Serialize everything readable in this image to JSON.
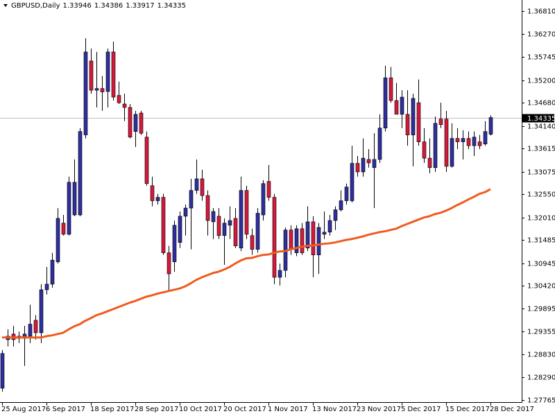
{
  "chart_data": {
    "type": "candlestick",
    "title": "GBPUSD,Daily",
    "header_ohlc": [
      1.33946,
      1.34386,
      1.33917,
      1.34335
    ],
    "categories": [
      "25 Aug 2017",
      null,
      null,
      null,
      null,
      null,
      null,
      null,
      "6 Sep 2017",
      null,
      null,
      null,
      null,
      null,
      null,
      null,
      "18 Sep 2017",
      null,
      null,
      null,
      null,
      null,
      null,
      null,
      "28 Sep 2017",
      null,
      null,
      null,
      null,
      null,
      null,
      null,
      "10 Oct 2017",
      null,
      null,
      null,
      null,
      null,
      null,
      null,
      "20 Oct 2017",
      null,
      null,
      null,
      null,
      null,
      null,
      null,
      "1 Nov 2017",
      null,
      null,
      null,
      null,
      null,
      null,
      null,
      "13 Nov 2017",
      null,
      null,
      null,
      null,
      null,
      null,
      null,
      "23 Nov 2017",
      null,
      null,
      null,
      null,
      null,
      null,
      null,
      "5 Dec 2017",
      null,
      null,
      null,
      null,
      null,
      null,
      null,
      "15 Dec 2017",
      null,
      null,
      null,
      null,
      null,
      null,
      null,
      "28 Dec 2017"
    ],
    "open": [
      1.2804,
      1.2917,
      1.293,
      1.292,
      1.292,
      1.2925,
      1.2962,
      1.2933,
      1.3033,
      1.3046,
      1.3098,
      1.3188,
      1.3162,
      1.3207,
      1.3207,
      1.3393,
      1.3565,
      1.3497,
      1.3501,
      1.3494,
      1.3586,
      1.3485,
      1.3465,
      1.3457,
      1.3401,
      1.3444,
      1.3388,
      1.3275,
      1.324,
      1.3248,
      1.3119,
      1.3098,
      1.3143,
      1.3204,
      1.3223,
      1.3264,
      1.3291,
      1.3252,
      1.3191,
      1.3204,
      1.3159,
      1.3183,
      1.3199,
      1.313,
      1.3264,
      1.3159,
      1.3127,
      1.3207,
      1.3285,
      1.3248,
      1.3062,
      1.3078,
      1.3172,
      1.3119,
      1.3175,
      1.313,
      1.3191,
      1.3114,
      1.3162,
      1.3167,
      1.3194,
      1.3219,
      1.324,
      1.324,
      1.3327,
      1.3307,
      1.3336,
      1.3317,
      1.3336,
      1.3409,
      1.3526,
      1.3473,
      1.3441,
      1.3441,
      1.3393,
      1.3468,
      1.3377,
      1.3339,
      1.3317,
      1.343,
      1.343,
      1.332,
      1.3385,
      1.3377,
      1.3385,
      1.3368,
      1.3377,
      1.3372,
      1.33946
    ],
    "high": [
      1.2893,
      1.2941,
      1.2949,
      1.2936,
      1.2949,
      1.2998,
      1.2974,
      1.3046,
      1.3086,
      1.3119,
      1.3223,
      1.3207,
      1.3296,
      1.3336,
      1.3409,
      1.3618,
      1.3594,
      1.3586,
      1.353,
      1.3594,
      1.361,
      1.3517,
      1.3489,
      1.3465,
      1.3449,
      1.3449,
      1.3401,
      1.3296,
      1.3256,
      1.3256,
      1.3135,
      1.3194,
      1.3215,
      1.3231,
      1.3291,
      1.3336,
      1.3312,
      1.3264,
      1.3223,
      1.3223,
      1.3199,
      1.3227,
      1.3223,
      1.3296,
      1.3275,
      1.3175,
      1.3223,
      1.3288,
      1.3323,
      1.3256,
      1.3094,
      1.3178,
      1.3183,
      1.3183,
      1.3188,
      1.3227,
      1.3204,
      1.3188,
      1.3215,
      1.3207,
      1.3227,
      1.3264,
      1.328,
      1.3368,
      1.3344,
      1.3385,
      1.336,
      1.3397,
      1.3441,
      1.3554,
      1.3551,
      1.3514,
      1.3497,
      1.3497,
      1.3489,
      1.3522,
      1.3409,
      1.3385,
      1.3436,
      1.3468,
      1.3449,
      1.342,
      1.3409,
      1.3404,
      1.3401,
      1.3401,
      1.3393,
      1.3425,
      1.34386
    ],
    "low": [
      1.2796,
      1.2901,
      1.2901,
      1.2909,
      1.2856,
      1.2909,
      1.2917,
      1.2909,
      1.3022,
      1.3038,
      1.3094,
      1.3159,
      1.3159,
      1.3204,
      1.3204,
      1.3385,
      1.3489,
      1.3457,
      1.3449,
      1.3457,
      1.3473,
      1.3465,
      1.3425,
      1.3385,
      1.3365,
      1.3393,
      1.3275,
      1.3227,
      1.3231,
      1.3114,
      1.303,
      1.3075,
      1.313,
      1.3159,
      1.3127,
      1.3256,
      1.324,
      1.3159,
      1.3151,
      1.3151,
      1.3091,
      1.3151,
      1.313,
      1.3123,
      1.3151,
      1.3114,
      1.3119,
      1.3194,
      1.324,
      1.3046,
      1.3043,
      1.3062,
      1.3114,
      1.3111,
      1.3114,
      1.3123,
      1.3062,
      1.307,
      1.3151,
      1.3159,
      1.3172,
      1.3215,
      1.3231,
      1.3236,
      1.3296,
      1.3296,
      1.3317,
      1.3223,
      1.3328,
      1.3401,
      1.3468,
      1.3441,
      1.3409,
      1.3368,
      1.332,
      1.3368,
      1.3328,
      1.3304,
      1.3307,
      1.3409,
      1.3307,
      1.3317,
      1.336,
      1.3336,
      1.336,
      1.3344,
      1.336,
      1.3368,
      1.33917
    ],
    "close": [
      1.2885,
      1.2925,
      1.2917,
      1.2925,
      1.293,
      1.2953,
      1.2933,
      1.3033,
      1.3046,
      1.3102,
      1.3199,
      1.3162,
      1.3283,
      1.3283,
      1.3401,
      1.3586,
      1.3497,
      1.3501,
      1.3493,
      1.3586,
      1.3481,
      1.3468,
      1.3457,
      1.3388,
      1.3441,
      1.3397,
      1.328,
      1.324,
      1.3248,
      1.3119,
      1.307,
      1.3183,
      1.3204,
      1.3223,
      1.3264,
      1.3291,
      1.3252,
      1.3194,
      1.3215,
      1.3159,
      1.3188,
      1.3194,
      1.3135,
      1.3264,
      1.3162,
      1.3127,
      1.3211,
      1.328,
      1.3248,
      1.3062,
      1.3078,
      1.3172,
      1.3127,
      1.3175,
      1.3119,
      1.3191,
      1.3114,
      1.3178,
      1.3167,
      1.3194,
      1.3219,
      1.324,
      1.3272,
      1.3327,
      1.3307,
      1.3339,
      1.3328,
      1.3336,
      1.3409,
      1.3526,
      1.3473,
      1.3441,
      1.3481,
      1.3393,
      1.3478,
      1.3377,
      1.3339,
      1.3317,
      1.342,
      1.3417,
      1.332,
      1.3385,
      1.3377,
      1.3385,
      1.3368,
      1.3388,
      1.3368,
      1.3401,
      1.34335
    ],
    "up_color": "#2f2f9e",
    "down_color": "#d41a3c",
    "ma": {
      "color": "#f05a1e",
      "values": [
        1.2922,
        1.2922,
        1.2922,
        1.2922,
        1.2922,
        1.2922,
        1.2922,
        1.2922,
        1.2925,
        1.2927,
        1.293,
        1.2933,
        1.2941,
        1.2948,
        1.2953,
        1.2961,
        1.2967,
        1.2974,
        1.2978,
        1.2983,
        1.2988,
        1.2993,
        1.2998,
        1.3003,
        1.3007,
        1.3012,
        1.3017,
        1.302,
        1.3024,
        1.3027,
        1.303,
        1.3033,
        1.3036,
        1.3041,
        1.3048,
        1.3056,
        1.3062,
        1.3067,
        1.3072,
        1.3075,
        1.308,
        1.3086,
        1.3094,
        1.3101,
        1.3106,
        1.3107,
        1.3111,
        1.3114,
        1.3115,
        1.3119,
        1.3122,
        1.3123,
        1.3127,
        1.313,
        1.3133,
        1.3135,
        1.3136,
        1.3138,
        1.314,
        1.3141,
        1.3143,
        1.3146,
        1.3149,
        1.3151,
        1.3154,
        1.3157,
        1.3161,
        1.3164,
        1.3167,
        1.3169,
        1.3172,
        1.3175,
        1.3181,
        1.3186,
        1.3191,
        1.3196,
        1.3201,
        1.3204,
        1.3209,
        1.3212,
        1.3217,
        1.3223,
        1.323,
        1.3236,
        1.3243,
        1.3249,
        1.3256,
        1.326,
        1.3267
      ]
    },
    "price_line": 1.34335,
    "ylim": [
      1.27717,
      1.37068
    ],
    "yticks": [
      {
        "value": 1.3681,
        "label": "1.36810"
      },
      {
        "value": 1.3627,
        "label": "1.36270"
      },
      1.35745,
      {
        "value": 1.352,
        "label": "1.35200"
      },
      {
        "value": 1.3468,
        "label": "1.34680"
      },
      {
        "value": 1.3414,
        "label": "1.34140"
      },
      1.33615,
      1.33075,
      {
        "value": 1.3255,
        "label": "1.32550"
      },
      {
        "value": 1.3201,
        "label": "1.32010"
      },
      1.31485,
      1.30945,
      {
        "value": 1.3042,
        "label": "1.30420"
      },
      1.29895,
      1.29355,
      {
        "value": 1.2883,
        "label": "1.28830"
      },
      {
        "value": 1.2829,
        "label": "1.28290"
      },
      1.27765
    ]
  }
}
